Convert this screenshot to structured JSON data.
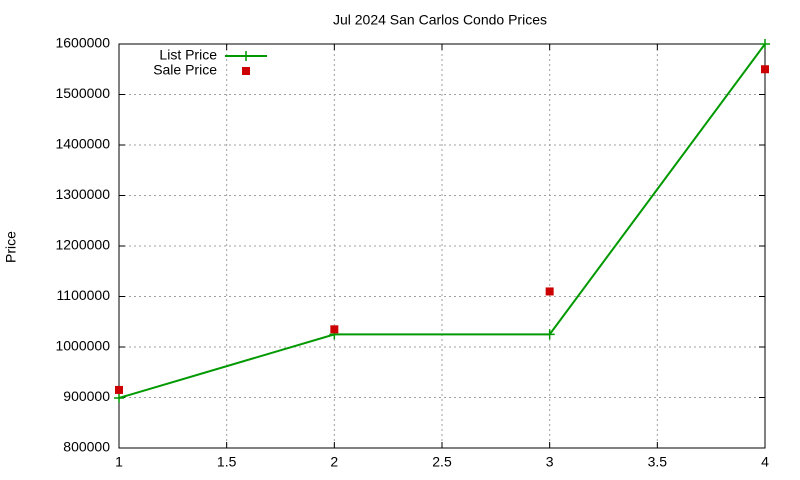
{
  "chart_data": {
    "type": "line",
    "title": "Jul 2024 San Carlos Condo Prices",
    "y_label": "Price",
    "x": [
      1,
      2,
      3,
      4
    ],
    "series": [
      {
        "name": "List Price",
        "color": "#009900",
        "style": "linespoints",
        "values": [
          899000,
          1025000,
          1025000,
          1600000
        ]
      },
      {
        "name": "Sale Price",
        "color": "#cc0000",
        "style": "points",
        "values": [
          915000,
          1035000,
          1110000,
          1550000
        ]
      }
    ],
    "xlim": [
      1,
      4
    ],
    "xticks": [
      1,
      1.5,
      2,
      2.5,
      3,
      3.5,
      4
    ],
    "ylim": [
      800000,
      1600000
    ],
    "yticks": [
      800000,
      900000,
      1000000,
      1100000,
      1200000,
      1300000,
      1400000,
      1500000,
      1600000
    ],
    "grid": true,
    "legend": "top-left"
  }
}
